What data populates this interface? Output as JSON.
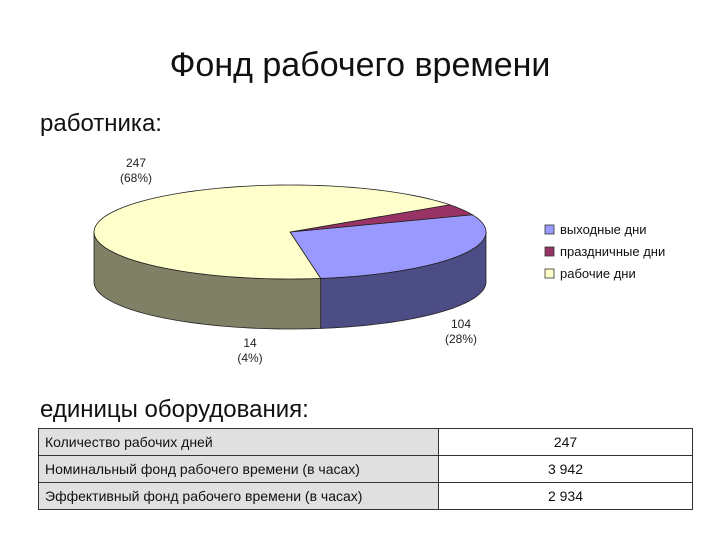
{
  "slide": {
    "title": "Фонд рабочего времени",
    "subtitle_worker": "работника:",
    "subtitle_equipment": "единицы оборудования:"
  },
  "chart_data": {
    "type": "pie",
    "title": "",
    "legend_position": "right",
    "slices": [
      {
        "name": "выходные дни",
        "value": 104,
        "percent_label": "(28%)",
        "color": "#9999ff",
        "side_color": "#4d4d85"
      },
      {
        "name": "праздничные дни",
        "value": 14,
        "percent_label": "(4%)",
        "color": "#993366",
        "side_color": "#4d1a33"
      },
      {
        "name": "рабочие дни",
        "value": 247,
        "percent_label": "(68%)",
        "color": "#ffffcc",
        "side_color": "#808066"
      }
    ]
  },
  "table": {
    "rows": [
      {
        "label": "Количество рабочих дней",
        "value": "247"
      },
      {
        "label": "Номинальный фонд рабочего времени (в часах)",
        "value": "3 942"
      },
      {
        "label": "Эффективный фонд рабочего времени (в часах)",
        "value": "2 934"
      }
    ]
  }
}
